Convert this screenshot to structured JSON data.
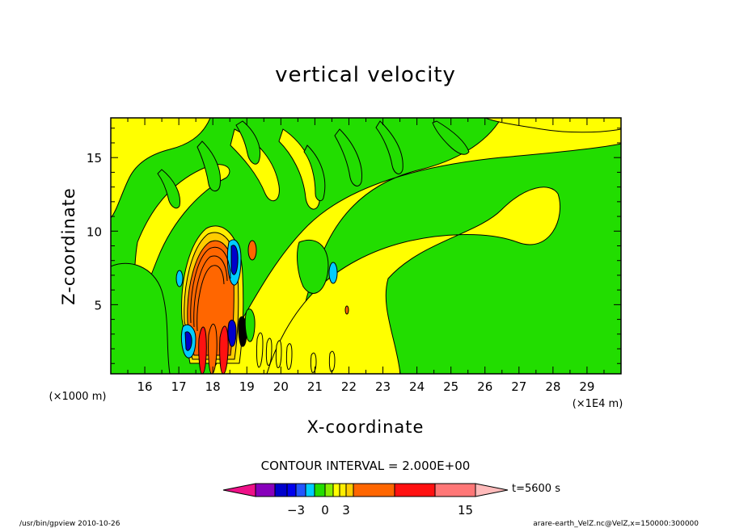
{
  "colors": {
    "green": "#22dd00",
    "yellow": "#ffff00",
    "orange": "#ff6600",
    "cyan": "#00ccff",
    "blue": "#0000cc",
    "dark_blue": "#0000aa",
    "contour": "#000000"
  },
  "chart_data": {
    "type": "heatmap",
    "title": "vertical velocity",
    "xlabel": "X-coordinate",
    "ylabel": "Z-coordinate",
    "x_unit_left": "(×1000 m)",
    "x_unit_right": "(×1E4 m)",
    "xlim": [
      150000,
      300000
    ],
    "ylim": [
      0.3,
      17.7
    ],
    "x_ticks": [
      "16",
      "17",
      "18",
      "19",
      "20",
      "21",
      "22",
      "23",
      "24",
      "25",
      "26",
      "27",
      "28",
      "29"
    ],
    "x_tick_values": [
      16,
      17,
      18,
      19,
      20,
      21,
      22,
      23,
      24,
      25,
      26,
      27,
      28,
      29
    ],
    "y_ticks": [
      "5",
      "10",
      "15"
    ],
    "y_tick_values": [
      5,
      10,
      15
    ],
    "contour_interval_text": "CONTOUR INTERVAL = 2.000E+00",
    "colorbar": {
      "colors": [
        "#ee1188",
        "#8800bb",
        "#0000cc",
        "#0000ee",
        "#2255ff",
        "#00ccff",
        "#22dd00",
        "#88ee00",
        "#ffff00",
        "#ffee00",
        "#ffcc00",
        "#ff6600",
        "#ff1111",
        "#ff7777",
        "#ffbbbb"
      ],
      "labels": [
        "−3",
        "0",
        "3",
        "15"
      ],
      "label_positions": [
        -3,
        0,
        3,
        15
      ],
      "levels": [
        -7,
        -5,
        -4,
        -3,
        -2,
        -1,
        0,
        1,
        2,
        3,
        4,
        8,
        12,
        16
      ],
      "time_label": "t=5600 s"
    },
    "footer_left": "/usr/bin/gpview   2010-10-26",
    "footer_right": "arare-earth_VelZ.nc@VelZ,x=150000:300000"
  }
}
